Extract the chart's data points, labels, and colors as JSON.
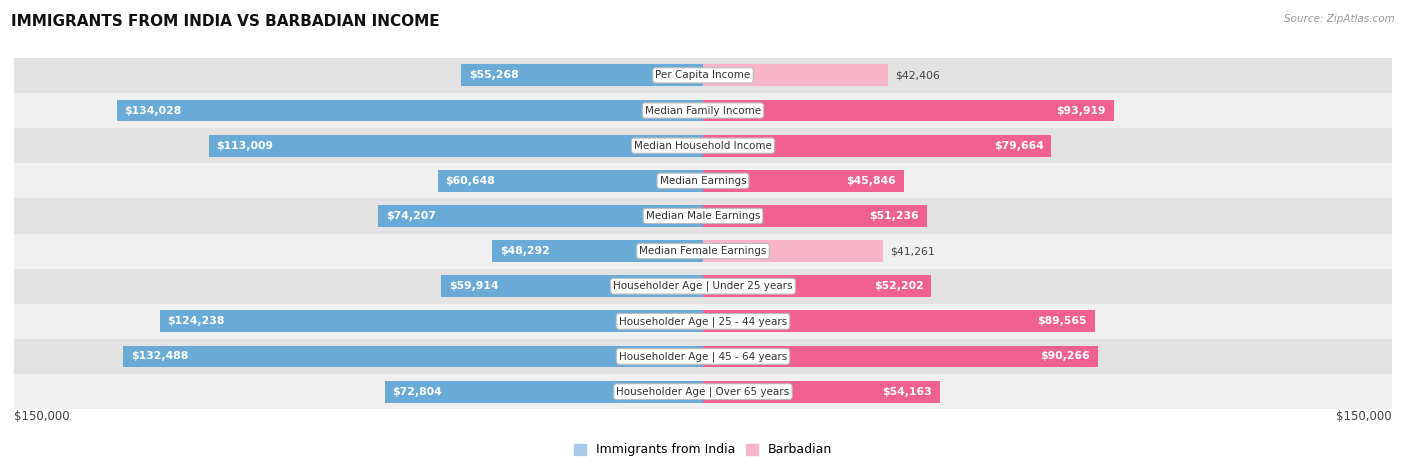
{
  "title": "IMMIGRANTS FROM INDIA VS BARBADIAN INCOME",
  "source": "Source: ZipAtlas.com",
  "categories": [
    "Per Capita Income",
    "Median Family Income",
    "Median Household Income",
    "Median Earnings",
    "Median Male Earnings",
    "Median Female Earnings",
    "Householder Age | Under 25 years",
    "Householder Age | 25 - 44 years",
    "Householder Age | 45 - 64 years",
    "Householder Age | Over 65 years"
  ],
  "india_values": [
    55268,
    134028,
    113009,
    60648,
    74207,
    48292,
    59914,
    124238,
    132488,
    72804
  ],
  "barbadian_values": [
    42406,
    93919,
    79664,
    45846,
    51236,
    41261,
    52202,
    89565,
    90266,
    54163
  ],
  "india_color_light": "#aac9e8",
  "india_color_dark": "#6aaad6",
  "barbadian_color_light": "#f8b4c8",
  "barbadian_color_dark": "#f06090",
  "india_label": "Immigrants from India",
  "barbadian_label": "Barbadian",
  "axis_max": 150000,
  "axis_label_left": "$150,000",
  "axis_label_right": "$150,000",
  "background_color": "#ffffff",
  "row_bg_light": "#f0f0f0",
  "row_bg_dark": "#e2e2e2",
  "bar_height": 0.62,
  "inside_threshold": 0.3
}
